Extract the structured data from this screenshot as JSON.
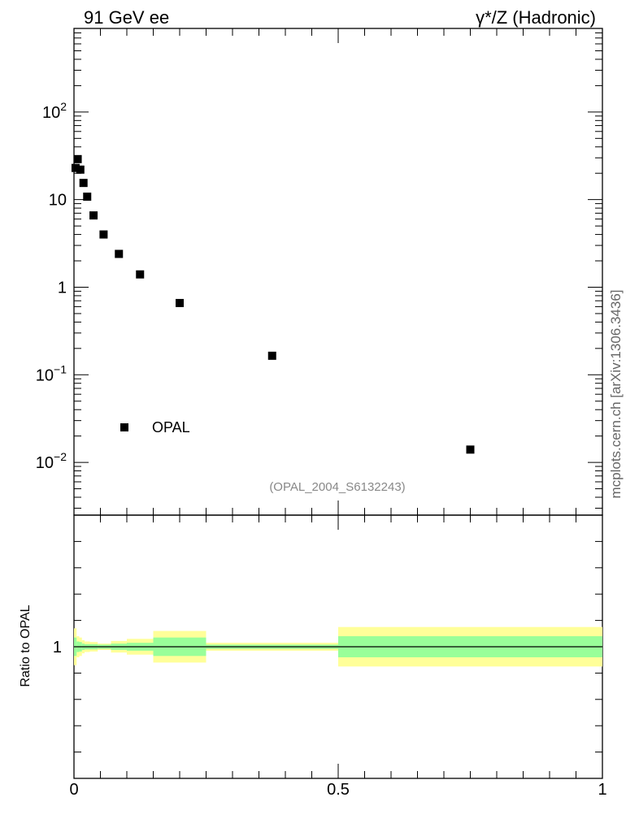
{
  "header": {
    "left_title": "91 GeV ee",
    "right_title": "γ*/Z (Hadronic)"
  },
  "side_label": "mcplots.cern.ch [arXiv:1306.3436]",
  "reference_label": "(OPAL_2004_S6132243)",
  "colors": {
    "marker": "#000000",
    "band_outer": "#ffff99",
    "band_inner": "#99ff99",
    "ref_label": "#888888",
    "side_label": "#666666"
  },
  "chart_data": [
    {
      "type": "scatter",
      "panel": "main",
      "yscale": "log",
      "xlim": [
        0,
        1
      ],
      "ylim": [
        0.0025,
        900
      ],
      "ytick_labels": [
        {
          "value": 100,
          "base": "10",
          "exp": "2"
        },
        {
          "value": 10,
          "base": "10",
          "exp": ""
        },
        {
          "value": 1,
          "base": "1",
          "exp": ""
        },
        {
          "value": 0.1,
          "base": "10",
          "exp": "−1"
        },
        {
          "value": 0.01,
          "base": "10",
          "exp": "−2"
        }
      ],
      "legend": {
        "placement": "lower-left",
        "entries": [
          "OPAL"
        ]
      },
      "series": [
        {
          "name": "OPAL",
          "x": [
            0.003,
            0.007,
            0.012,
            0.018,
            0.025,
            0.037,
            0.056,
            0.085,
            0.125,
            0.2,
            0.375,
            0.75
          ],
          "y": [
            23,
            29,
            22,
            15.5,
            10.8,
            6.6,
            4.0,
            2.4,
            1.4,
            0.66,
            0.165,
            0.014
          ]
        }
      ]
    },
    {
      "type": "area",
      "panel": "ratio",
      "ylabel": "Ratio to OPAL",
      "xlim": [
        0,
        1
      ],
      "ylim": [
        0.5,
        1.5
      ],
      "xtick_labels": [
        {
          "value": 0,
          "label": "0"
        },
        {
          "value": 0.5,
          "label": "0.5"
        },
        {
          "value": 1,
          "label": "1"
        }
      ],
      "ytick_labels": [
        {
          "value": 1,
          "label": "1"
        }
      ],
      "bands": [
        {
          "x0": 0.0,
          "x1": 0.005,
          "inner": 0.035,
          "outer": 0.07
        },
        {
          "x0": 0.005,
          "x1": 0.01,
          "inner": 0.02,
          "outer": 0.04
        },
        {
          "x0": 0.01,
          "x1": 0.015,
          "inner": 0.018,
          "outer": 0.035
        },
        {
          "x0": 0.015,
          "x1": 0.02,
          "inner": 0.012,
          "outer": 0.025
        },
        {
          "x0": 0.02,
          "x1": 0.03,
          "inner": 0.01,
          "outer": 0.02
        },
        {
          "x0": 0.03,
          "x1": 0.045,
          "inner": 0.01,
          "outer": 0.018
        },
        {
          "x0": 0.045,
          "x1": 0.07,
          "inner": 0.008,
          "outer": 0.012
        },
        {
          "x0": 0.07,
          "x1": 0.1,
          "inner": 0.012,
          "outer": 0.022
        },
        {
          "x0": 0.1,
          "x1": 0.15,
          "inner": 0.015,
          "outer": 0.03
        },
        {
          "x0": 0.15,
          "x1": 0.25,
          "inner": 0.035,
          "outer": 0.06
        },
        {
          "x0": 0.25,
          "x1": 0.5,
          "inner": 0.008,
          "outer": 0.015
        },
        {
          "x0": 0.5,
          "x1": 1.0,
          "inner": 0.04,
          "outer": 0.075
        }
      ]
    }
  ]
}
